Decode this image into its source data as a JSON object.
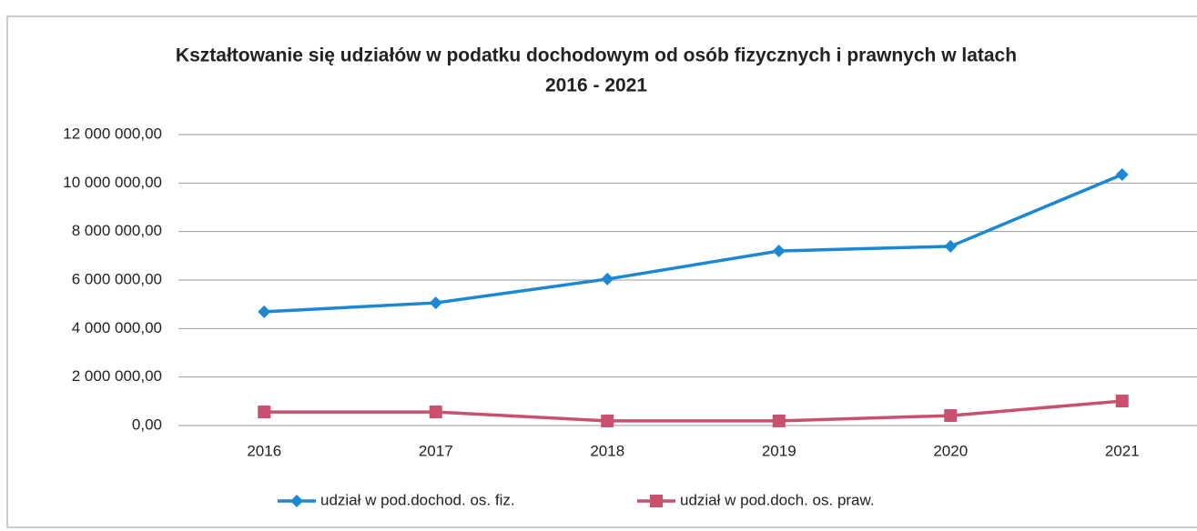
{
  "chart_data": {
    "type": "line",
    "title": [
      "Kształtowanie się udziałów w podatku dochodowym od osób fizycznych i prawnych w latach",
      "2016 - 2021"
    ],
    "categories": [
      "2016",
      "2017",
      "2018",
      "2019",
      "2020",
      "2021"
    ],
    "series": [
      {
        "name": "udział w pod.dochod. os. fiz.",
        "color": "#1c87d2",
        "marker": "diamond",
        "values": [
          4690000,
          5060000,
          6040000,
          7200000,
          7390000,
          10350000
        ]
      },
      {
        "name": "udział w pod.doch. os. praw.",
        "color": "#c9506e",
        "marker": "square",
        "values": [
          560000,
          560000,
          190000,
          190000,
          410000,
          1010000
        ]
      }
    ],
    "ylim": [
      0,
      12000000
    ],
    "yticks": [
      {
        "value": 0,
        "label": "0,00"
      },
      {
        "value": 2000000,
        "label": "2 000 000,00"
      },
      {
        "value": 4000000,
        "label": "4 000 000,00"
      },
      {
        "value": 6000000,
        "label": "6 000 000,00"
      },
      {
        "value": 8000000,
        "label": "8 000 000,00"
      },
      {
        "value": 10000000,
        "label": "10 000 000,00"
      },
      {
        "value": 12000000,
        "label": "12 000 000,00"
      }
    ],
    "grid": true,
    "legend": "bottom"
  }
}
